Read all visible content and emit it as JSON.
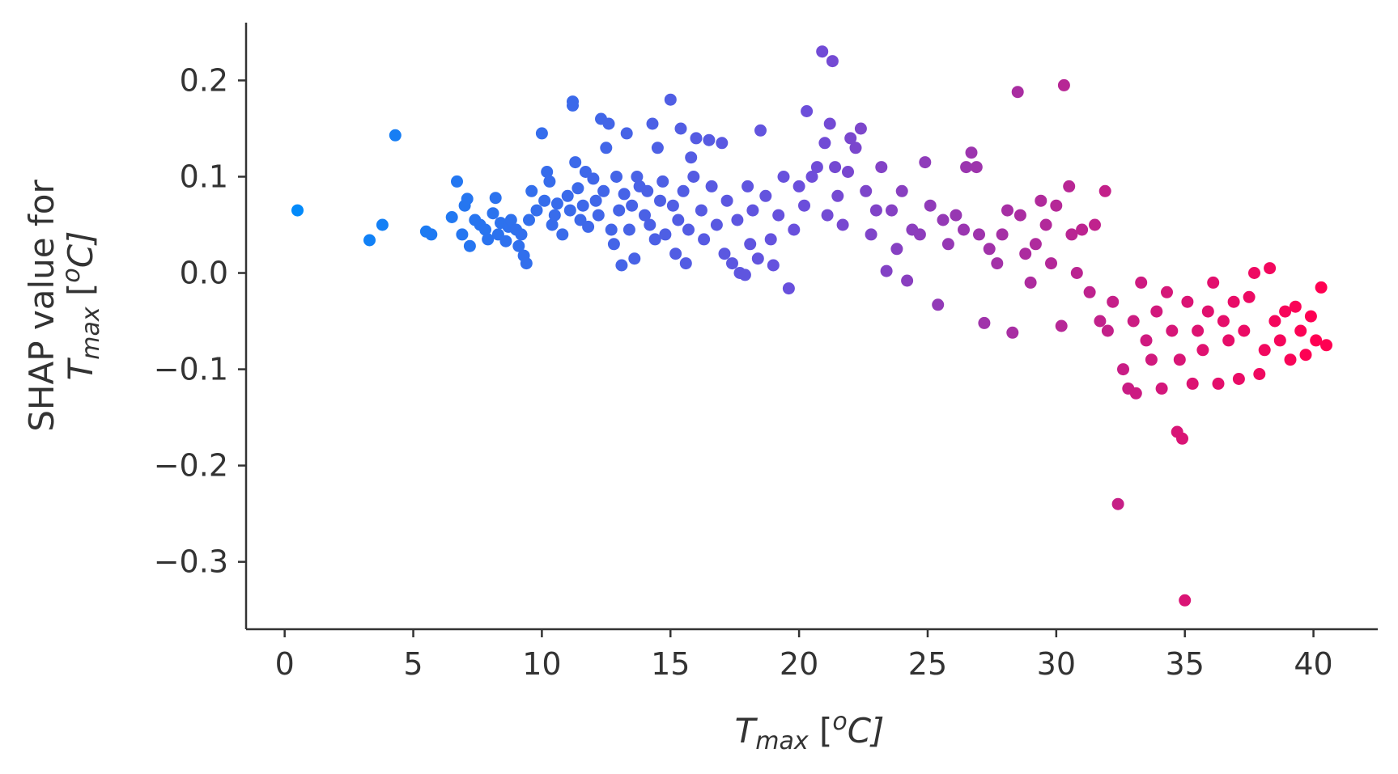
{
  "chart_data": {
    "type": "scatter",
    "title": "",
    "xlabel": {
      "main": "T",
      "sub": "max",
      "unit_open": " [",
      "unit_sup": "o",
      "unit_close": "C]"
    },
    "ylabel": {
      "line1": "SHAP value for",
      "main": "T",
      "sub": "max",
      "unit_open": " [",
      "unit_sup": "o",
      "unit_close": "C]"
    },
    "xlim": [
      -1.5,
      42.5
    ],
    "ylim": [
      -0.37,
      0.26
    ],
    "xticks": [
      0,
      5,
      10,
      15,
      20,
      25,
      30,
      35,
      40
    ],
    "xtick_labels": [
      "0",
      "5",
      "10",
      "15",
      "20",
      "25",
      "30",
      "35",
      "40"
    ],
    "yticks": [
      0.2,
      0.1,
      0.0,
      -0.1,
      -0.2,
      -0.3
    ],
    "ytick_labels": [
      "0.2",
      "0.1",
      "0.0",
      "−0.1",
      "−0.2",
      "−0.3"
    ],
    "grid": false,
    "colormap": {
      "low": "#008bfb",
      "mid": "#6a4fdc",
      "high": "#ff0052",
      "domain": [
        0,
        40
      ]
    },
    "axis_color": "#333333",
    "points": [
      [
        0.5,
        0.065
      ],
      [
        3.3,
        0.034
      ],
      [
        3.8,
        0.05
      ],
      [
        4.3,
        0.143
      ],
      [
        5.5,
        0.043
      ],
      [
        5.7,
        0.04
      ],
      [
        6.5,
        0.058
      ],
      [
        6.7,
        0.095
      ],
      [
        6.9,
        0.04
      ],
      [
        7.0,
        0.07
      ],
      [
        7.1,
        0.077
      ],
      [
        7.2,
        0.028
      ],
      [
        7.4,
        0.055
      ],
      [
        7.6,
        0.05
      ],
      [
        7.8,
        0.045
      ],
      [
        7.9,
        0.035
      ],
      [
        8.1,
        0.062
      ],
      [
        8.2,
        0.078
      ],
      [
        8.3,
        0.04
      ],
      [
        8.4,
        0.052
      ],
      [
        8.6,
        0.033
      ],
      [
        8.7,
        0.048
      ],
      [
        8.8,
        0.055
      ],
      [
        9.0,
        0.045
      ],
      [
        9.1,
        0.028
      ],
      [
        9.2,
        0.04
      ],
      [
        9.3,
        0.018
      ],
      [
        9.4,
        0.01
      ],
      [
        9.5,
        0.055
      ],
      [
        9.6,
        0.085
      ],
      [
        9.8,
        0.065
      ],
      [
        10.0,
        0.145
      ],
      [
        10.1,
        0.075
      ],
      [
        10.2,
        0.105
      ],
      [
        10.3,
        0.095
      ],
      [
        10.4,
        0.05
      ],
      [
        10.5,
        0.06
      ],
      [
        10.6,
        0.072
      ],
      [
        10.8,
        0.04
      ],
      [
        11.0,
        0.08
      ],
      [
        11.1,
        0.065
      ],
      [
        11.2,
        0.178
      ],
      [
        11.2,
        0.174
      ],
      [
        11.3,
        0.115
      ],
      [
        11.4,
        0.088
      ],
      [
        11.5,
        0.055
      ],
      [
        11.6,
        0.07
      ],
      [
        11.7,
        0.105
      ],
      [
        11.8,
        0.048
      ],
      [
        12.0,
        0.098
      ],
      [
        12.1,
        0.075
      ],
      [
        12.2,
        0.06
      ],
      [
        12.3,
        0.16
      ],
      [
        12.4,
        0.085
      ],
      [
        12.5,
        0.13
      ],
      [
        12.6,
        0.155
      ],
      [
        12.7,
        0.045
      ],
      [
        12.8,
        0.03
      ],
      [
        12.9,
        0.1
      ],
      [
        13.0,
        0.065
      ],
      [
        13.1,
        0.008
      ],
      [
        13.2,
        0.082
      ],
      [
        13.3,
        0.145
      ],
      [
        13.4,
        0.045
      ],
      [
        13.5,
        0.07
      ],
      [
        13.6,
        0.015
      ],
      [
        13.7,
        0.1
      ],
      [
        13.8,
        0.09
      ],
      [
        14.0,
        0.06
      ],
      [
        14.1,
        0.085
      ],
      [
        14.2,
        0.05
      ],
      [
        14.3,
        0.155
      ],
      [
        14.4,
        0.035
      ],
      [
        14.5,
        0.13
      ],
      [
        14.6,
        0.075
      ],
      [
        14.7,
        0.095
      ],
      [
        14.8,
        0.04
      ],
      [
        15.0,
        0.18
      ],
      [
        15.1,
        0.07
      ],
      [
        15.2,
        0.02
      ],
      [
        15.3,
        0.055
      ],
      [
        15.4,
        0.15
      ],
      [
        15.5,
        0.085
      ],
      [
        15.6,
        0.01
      ],
      [
        15.7,
        0.045
      ],
      [
        15.8,
        0.12
      ],
      [
        15.9,
        0.1
      ],
      [
        16.0,
        0.14
      ],
      [
        16.2,
        0.065
      ],
      [
        16.3,
        0.035
      ],
      [
        16.5,
        0.138
      ],
      [
        16.6,
        0.09
      ],
      [
        16.8,
        0.05
      ],
      [
        17.0,
        0.135
      ],
      [
        17.1,
        0.02
      ],
      [
        17.2,
        0.075
      ],
      [
        17.4,
        0.01
      ],
      [
        17.6,
        0.055
      ],
      [
        17.7,
        0.0
      ],
      [
        17.9,
        -0.002
      ],
      [
        18.0,
        0.09
      ],
      [
        18.1,
        0.03
      ],
      [
        18.2,
        0.065
      ],
      [
        18.4,
        0.015
      ],
      [
        18.5,
        0.148
      ],
      [
        18.7,
        0.08
      ],
      [
        18.9,
        0.035
      ],
      [
        19.0,
        0.008
      ],
      [
        19.2,
        0.06
      ],
      [
        19.4,
        0.1
      ],
      [
        19.6,
        -0.016
      ],
      [
        19.8,
        0.045
      ],
      [
        20.0,
        0.09
      ],
      [
        20.2,
        0.07
      ],
      [
        20.3,
        0.168
      ],
      [
        20.5,
        0.1
      ],
      [
        20.7,
        0.11
      ],
      [
        20.9,
        0.23
      ],
      [
        21.0,
        0.135
      ],
      [
        21.1,
        0.06
      ],
      [
        21.3,
        0.22
      ],
      [
        21.2,
        0.155
      ],
      [
        21.4,
        0.11
      ],
      [
        21.5,
        0.08
      ],
      [
        21.7,
        0.05
      ],
      [
        21.9,
        0.105
      ],
      [
        22.0,
        0.14
      ],
      [
        22.2,
        0.13
      ],
      [
        22.4,
        0.15
      ],
      [
        22.6,
        0.085
      ],
      [
        22.8,
        0.04
      ],
      [
        23.0,
        0.065
      ],
      [
        23.2,
        0.11
      ],
      [
        23.4,
        0.002
      ],
      [
        23.6,
        0.065
      ],
      [
        23.8,
        0.025
      ],
      [
        24.0,
        0.085
      ],
      [
        24.2,
        -0.008
      ],
      [
        24.4,
        0.045
      ],
      [
        24.7,
        0.04
      ],
      [
        24.9,
        0.115
      ],
      [
        25.1,
        0.07
      ],
      [
        25.4,
        -0.033
      ],
      [
        25.6,
        0.055
      ],
      [
        25.8,
        0.03
      ],
      [
        26.1,
        0.06
      ],
      [
        26.4,
        0.045
      ],
      [
        26.5,
        0.11
      ],
      [
        26.7,
        0.125
      ],
      [
        26.9,
        0.11
      ],
      [
        27.0,
        0.04
      ],
      [
        27.2,
        -0.052
      ],
      [
        27.4,
        0.025
      ],
      [
        27.7,
        0.01
      ],
      [
        27.9,
        0.04
      ],
      [
        28.1,
        0.065
      ],
      [
        28.3,
        -0.062
      ],
      [
        28.5,
        0.188
      ],
      [
        28.6,
        0.06
      ],
      [
        28.8,
        0.02
      ],
      [
        29.0,
        -0.01
      ],
      [
        29.2,
        0.03
      ],
      [
        29.4,
        0.075
      ],
      [
        29.6,
        0.05
      ],
      [
        29.8,
        0.01
      ],
      [
        30.0,
        0.07
      ],
      [
        30.2,
        -0.055
      ],
      [
        30.3,
        0.195
      ],
      [
        30.5,
        0.09
      ],
      [
        30.6,
        0.04
      ],
      [
        30.8,
        0.0
      ],
      [
        31.0,
        0.045
      ],
      [
        31.3,
        -0.02
      ],
      [
        31.5,
        0.05
      ],
      [
        31.7,
        -0.05
      ],
      [
        31.9,
        0.085
      ],
      [
        32.0,
        -0.06
      ],
      [
        32.2,
        -0.03
      ],
      [
        32.4,
        -0.24
      ],
      [
        32.6,
        -0.1
      ],
      [
        32.8,
        -0.12
      ],
      [
        33.0,
        -0.05
      ],
      [
        33.1,
        -0.125
      ],
      [
        33.3,
        -0.01
      ],
      [
        33.5,
        -0.07
      ],
      [
        33.7,
        -0.09
      ],
      [
        33.9,
        -0.04
      ],
      [
        34.1,
        -0.12
      ],
      [
        34.3,
        -0.02
      ],
      [
        34.5,
        -0.06
      ],
      [
        34.7,
        -0.165
      ],
      [
        34.8,
        -0.09
      ],
      [
        34.9,
        -0.172
      ],
      [
        35.0,
        -0.34
      ],
      [
        35.1,
        -0.03
      ],
      [
        35.3,
        -0.115
      ],
      [
        35.5,
        -0.06
      ],
      [
        35.7,
        -0.08
      ],
      [
        35.9,
        -0.04
      ],
      [
        36.1,
        -0.01
      ],
      [
        36.3,
        -0.115
      ],
      [
        36.5,
        -0.05
      ],
      [
        36.7,
        -0.07
      ],
      [
        36.9,
        -0.03
      ],
      [
        37.1,
        -0.11
      ],
      [
        37.3,
        -0.06
      ],
      [
        37.5,
        -0.025
      ],
      [
        37.7,
        0.0
      ],
      [
        37.9,
        -0.105
      ],
      [
        38.1,
        -0.08
      ],
      [
        38.3,
        0.005
      ],
      [
        38.5,
        -0.05
      ],
      [
        38.7,
        -0.07
      ],
      [
        38.9,
        -0.04
      ],
      [
        39.1,
        -0.09
      ],
      [
        39.3,
        -0.035
      ],
      [
        39.5,
        -0.06
      ],
      [
        39.7,
        -0.085
      ],
      [
        39.9,
        -0.045
      ],
      [
        40.1,
        -0.07
      ],
      [
        40.3,
        -0.015
      ],
      [
        40.5,
        -0.075
      ]
    ]
  }
}
